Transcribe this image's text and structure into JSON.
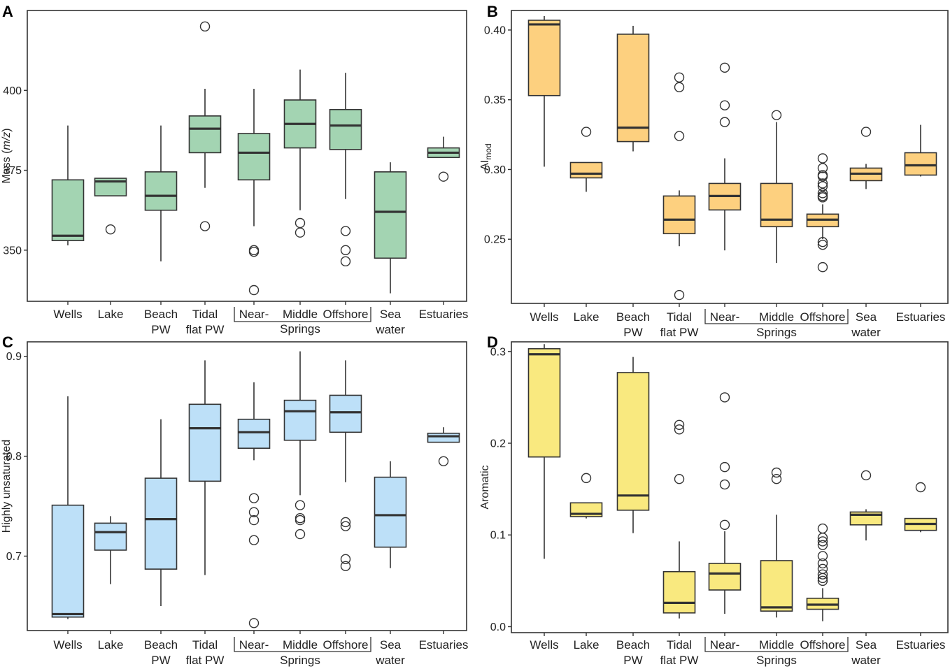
{
  "chart_data": [
    {
      "panel": "A",
      "type": "box",
      "ylabel": "Mass (m/z)",
      "ylabel_parts": [
        "Mass (",
        "m/z",
        ")"
      ],
      "color": "#a3d4b2",
      "ylim": [
        334,
        425
      ],
      "yticks": [
        350,
        375,
        400
      ],
      "yticklabels": [
        "350",
        "375",
        "400"
      ],
      "categories": [
        "Wells",
        "Lake",
        "Beach PW",
        "Tidal flat PW",
        "Near-",
        "Middle",
        "Offshore",
        "Sea water",
        "Estuaries"
      ],
      "boxes": [
        {
          "q1": 353,
          "median": 354.5,
          "q3": 372,
          "whislo": 351.5,
          "whishi": 389,
          "fliers": []
        },
        {
          "q1": 367,
          "median": 371.5,
          "q3": 372.5,
          "whislo": 367,
          "whishi": 372.5,
          "fliers": [
            356.5
          ]
        },
        {
          "q1": 362.5,
          "median": 367,
          "q3": 374.5,
          "whislo": 346.5,
          "whishi": 389,
          "fliers": []
        },
        {
          "q1": 380.5,
          "median": 388,
          "q3": 392,
          "whislo": 369.5,
          "whishi": 400.5,
          "fliers": [
            357.5,
            420
          ]
        },
        {
          "q1": 372,
          "median": 380.5,
          "q3": 386.5,
          "whislo": 357.5,
          "whishi": 400.5,
          "fliers": [
            349.5,
            350,
            337.5
          ]
        },
        {
          "q1": 382,
          "median": 389.5,
          "q3": 397,
          "whislo": 362.5,
          "whishi": 406.5,
          "fliers": [
            358.5,
            355.5
          ]
        },
        {
          "q1": 381.5,
          "median": 389,
          "q3": 394,
          "whislo": 366,
          "whishi": 405.5,
          "fliers": [
            356,
            350,
            346.5
          ]
        },
        {
          "q1": 347.5,
          "median": 362,
          "q3": 374.5,
          "whislo": 336.5,
          "whishi": 377.5,
          "fliers": []
        },
        {
          "q1": 379,
          "median": 380.5,
          "q3": 382,
          "whislo": 379,
          "whishi": 385.5,
          "fliers": [
            373
          ]
        }
      ]
    },
    {
      "panel": "B",
      "type": "box",
      "ylabel": "AImod",
      "ylabel_main": "AI",
      "ylabel_sub": "mod",
      "color": "#fdd07f",
      "ylim": [
        0.204,
        0.414
      ],
      "yticks": [
        0.25,
        0.3,
        0.35,
        0.4
      ],
      "yticklabels": [
        "0.25",
        "0.30",
        "0.35",
        "0.40"
      ],
      "categories": [
        "Wells",
        "Lake",
        "Beach PW",
        "Tidal flat PW",
        "Near-",
        "Middle",
        "Offshore",
        "Sea water",
        "Estuaries"
      ],
      "boxes": [
        {
          "q1": 0.353,
          "median": 0.404,
          "q3": 0.407,
          "whislo": 0.302,
          "whishi": 0.41,
          "fliers": []
        },
        {
          "q1": 0.294,
          "median": 0.297,
          "q3": 0.305,
          "whislo": 0.284,
          "whishi": 0.305,
          "fliers": [
            0.327
          ]
        },
        {
          "q1": 0.32,
          "median": 0.33,
          "q3": 0.397,
          "whislo": 0.313,
          "whishi": 0.403,
          "fliers": []
        },
        {
          "q1": 0.254,
          "median": 0.264,
          "q3": 0.281,
          "whislo": 0.245,
          "whishi": 0.285,
          "fliers": [
            0.324,
            0.359,
            0.366,
            0.21
          ]
        },
        {
          "q1": 0.271,
          "median": 0.281,
          "q3": 0.29,
          "whislo": 0.242,
          "whishi": 0.308,
          "fliers": [
            0.373,
            0.346,
            0.334
          ]
        },
        {
          "q1": 0.259,
          "median": 0.264,
          "q3": 0.29,
          "whislo": 0.233,
          "whishi": 0.334,
          "fliers": [
            0.339
          ]
        },
        {
          "q1": 0.259,
          "median": 0.264,
          "q3": 0.268,
          "whislo": 0.25,
          "whishi": 0.275,
          "fliers": [
            0.308,
            0.301,
            0.296,
            0.295,
            0.29,
            0.288,
            0.283,
            0.281,
            0.28,
            0.248,
            0.246,
            0.23
          ]
        },
        {
          "q1": 0.292,
          "median": 0.297,
          "q3": 0.301,
          "whislo": 0.286,
          "whishi": 0.304,
          "fliers": [
            0.327
          ]
        },
        {
          "q1": 0.296,
          "median": 0.303,
          "q3": 0.312,
          "whislo": 0.295,
          "whishi": 0.332,
          "fliers": []
        }
      ]
    },
    {
      "panel": "C",
      "type": "box",
      "ylabel": "Highly unsaturated",
      "color": "#bde0f8",
      "ylim": [
        0.6255,
        0.9145
      ],
      "yticks": [
        0.7,
        0.8,
        0.9
      ],
      "yticklabels": [
        "0.7",
        "0.8",
        "0.9"
      ],
      "categories": [
        "Wells",
        "Lake",
        "Beach PW",
        "Tidal flat PW",
        "Near-",
        "Middle",
        "Offshore",
        "Sea water",
        "Estuaries"
      ],
      "boxes": [
        {
          "q1": 0.639,
          "median": 0.642,
          "q3": 0.751,
          "whislo": 0.637,
          "whishi": 0.86,
          "fliers": []
        },
        {
          "q1": 0.706,
          "median": 0.724,
          "q3": 0.733,
          "whislo": 0.672,
          "whishi": 0.74,
          "fliers": []
        },
        {
          "q1": 0.687,
          "median": 0.737,
          "q3": 0.778,
          "whislo": 0.65,
          "whishi": 0.837,
          "fliers": []
        },
        {
          "q1": 0.775,
          "median": 0.828,
          "q3": 0.852,
          "whislo": 0.681,
          "whishi": 0.896,
          "fliers": []
        },
        {
          "q1": 0.808,
          "median": 0.824,
          "q3": 0.837,
          "whislo": 0.796,
          "whishi": 0.874,
          "fliers": [
            0.758,
            0.744,
            0.736,
            0.716,
            0.633
          ]
        },
        {
          "q1": 0.816,
          "median": 0.845,
          "q3": 0.856,
          "whislo": 0.761,
          "whishi": 0.905,
          "fliers": [
            0.751,
            0.738,
            0.736,
            0.722
          ]
        },
        {
          "q1": 0.824,
          "median": 0.844,
          "q3": 0.861,
          "whislo": 0.774,
          "whishi": 0.896,
          "fliers": [
            0.734,
            0.73,
            0.697,
            0.69
          ]
        },
        {
          "q1": 0.709,
          "median": 0.741,
          "q3": 0.779,
          "whislo": 0.688,
          "whishi": 0.795,
          "fliers": []
        },
        {
          "q1": 0.814,
          "median": 0.82,
          "q3": 0.823,
          "whislo": 0.814,
          "whishi": 0.829,
          "fliers": [
            0.795
          ]
        }
      ]
    },
    {
      "panel": "D",
      "type": "box",
      "ylabel": "Aromatic",
      "color": "#f9e97f",
      "ylim": [
        -0.0065,
        0.3105
      ],
      "yticks": [
        0.0,
        0.1,
        0.2,
        0.3
      ],
      "yticklabels": [
        "0.0",
        "0.1",
        "0.2",
        "0.3"
      ],
      "categories": [
        "Wells",
        "Lake",
        "Beach PW",
        "Tidal flat PW",
        "Near-",
        "Middle",
        "Offshore",
        "Sea water",
        "Estuaries"
      ],
      "boxes": [
        {
          "q1": 0.185,
          "median": 0.297,
          "q3": 0.303,
          "whislo": 0.074,
          "whishi": 0.308,
          "fliers": []
        },
        {
          "q1": 0.12,
          "median": 0.123,
          "q3": 0.135,
          "whislo": 0.118,
          "whishi": 0.135,
          "fliers": [
            0.162
          ]
        },
        {
          "q1": 0.127,
          "median": 0.143,
          "q3": 0.277,
          "whislo": 0.102,
          "whishi": 0.294,
          "fliers": []
        },
        {
          "q1": 0.015,
          "median": 0.026,
          "q3": 0.06,
          "whislo": 0.009,
          "whishi": 0.093,
          "fliers": [
            0.22,
            0.215,
            0.161
          ]
        },
        {
          "q1": 0.04,
          "median": 0.058,
          "q3": 0.069,
          "whislo": 0.014,
          "whishi": 0.104,
          "fliers": [
            0.25,
            0.174,
            0.155,
            0.111
          ]
        },
        {
          "q1": 0.017,
          "median": 0.021,
          "q3": 0.072,
          "whislo": 0.01,
          "whishi": 0.122,
          "fliers": [
            0.168,
            0.161
          ]
        },
        {
          "q1": 0.019,
          "median": 0.024,
          "q3": 0.031,
          "whislo": 0.006,
          "whishi": 0.042,
          "fliers": [
            0.107,
            0.097,
            0.093,
            0.089,
            0.077,
            0.069,
            0.063,
            0.057,
            0.053,
            0.05
          ]
        },
        {
          "q1": 0.111,
          "median": 0.122,
          "q3": 0.125,
          "whislo": 0.094,
          "whishi": 0.128,
          "fliers": [
            0.165
          ]
        },
        {
          "q1": 0.105,
          "median": 0.112,
          "q3": 0.118,
          "whislo": 0.103,
          "whishi": 0.118,
          "fliers": [
            0.152
          ]
        }
      ]
    }
  ],
  "xaxis": {
    "labels": [
      [
        "Wells"
      ],
      [
        "Lake"
      ],
      [
        "Beach",
        "PW"
      ],
      [
        "Tidal",
        "flat PW"
      ],
      [
        "Near-"
      ],
      [
        "Middle"
      ],
      [
        "Offshore"
      ],
      [
        "Sea",
        "water"
      ],
      [
        "Estuaries"
      ]
    ],
    "group_label": "Springs"
  }
}
